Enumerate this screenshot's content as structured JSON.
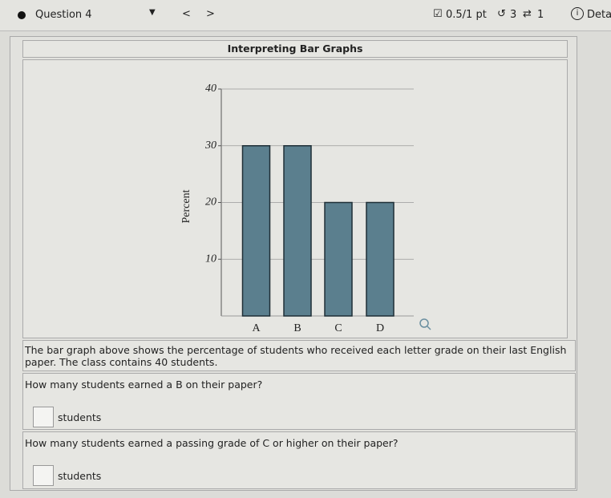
{
  "header": {
    "question": "Question 4",
    "prev": "<",
    "next": ">",
    "score": "0.5/1 pt",
    "retries": "3",
    "submissions": "1",
    "details": "Deta"
  },
  "panel_title": "Interpreting Bar Graphs",
  "chart_data": {
    "type": "bar",
    "y_label": "Percent",
    "categories": [
      "A",
      "B",
      "C",
      "D"
    ],
    "values": [
      30,
      30,
      20,
      20
    ],
    "color": "#5b7f8e",
    "ylim": [
      0,
      40
    ],
    "yticks": [
      10,
      20,
      30,
      40
    ],
    "grid": true
  },
  "intro": "The bar graph above shows the percentage of students who received each letter grade on their last English paper. The class contains 40 students.",
  "questions": [
    {
      "prompt": "How many students earned a B on their paper?",
      "unit": "students"
    },
    {
      "prompt": "How many students earned a passing grade of C or higher on their paper?",
      "unit": "students"
    }
  ]
}
